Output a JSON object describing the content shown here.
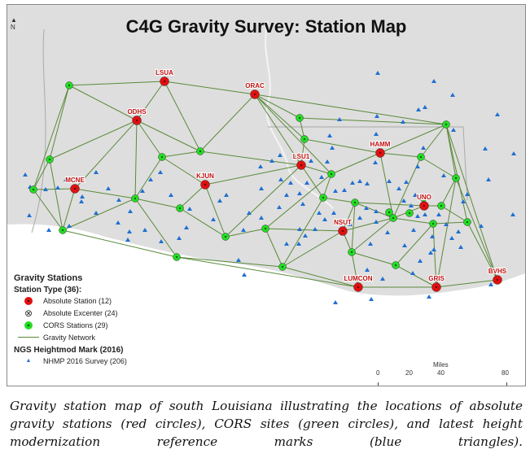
{
  "title": "C4G Gravity Survey: Station Map",
  "north_label": "N",
  "absolute_stations": [
    "LSUA",
    "ORAC",
    "ODHS",
    "MCNE",
    "KJUN",
    "LSU1",
    "HAMM",
    "UNO",
    "NSUT",
    "LUMCON",
    "GRIS",
    "BVHS"
  ],
  "legend": {
    "heading": "Gravity Stations",
    "station_type": "Station Type (36):",
    "items": [
      {
        "label": "Absolute Station (12)",
        "color": "#e01010"
      },
      {
        "label": "Absolute Excenter (24)",
        "color": "#888888"
      },
      {
        "label": "CORS Stations (29)",
        "color": "#22dd22"
      },
      {
        "label": "Gravity Network",
        "color": "#5a8a3a"
      }
    ],
    "ngs_heading": "NGS Heightmod Mark (2016)",
    "ngs_item": {
      "label": "NHMP 2016 Survey (206)",
      "color": "#1f6fd1"
    }
  },
  "scale": {
    "unit": "Miles",
    "ticks": [
      "0",
      "20",
      "40",
      "80"
    ]
  },
  "caption": "Gravity station map of south Louisiana illustrating the locations of absolute gravity stations (red circles), CORS sites (green circles), and latest height modernization reference marks (blue triangles)."
}
